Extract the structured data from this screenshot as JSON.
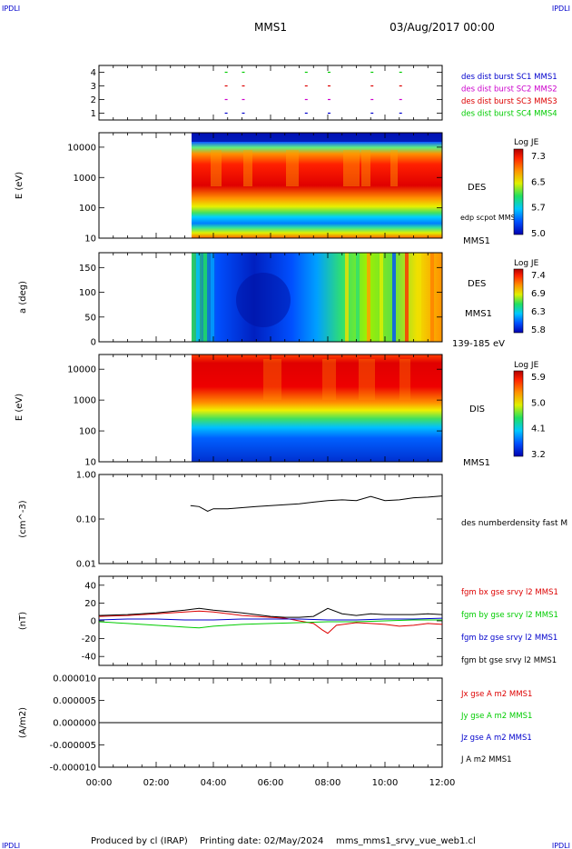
{
  "header": {
    "corner_left": "IPDLI",
    "corner_right": "IPDLI",
    "mission": "MMS1",
    "date": "03/Aug/2017 00:00"
  },
  "footer": {
    "produced_by": "Produced by  cl (IRAP)",
    "printing": "Printing date: 02/May/2024",
    "script": "mms_mms1_srvy_vue_web1.cl",
    "corner_left": "IPDLI",
    "corner_right": "IPDLI"
  },
  "colors": {
    "blue": "#0000cc",
    "magenta": "#cc00cc",
    "red": "#dd0000",
    "green": "#00cc00",
    "black": "#000000"
  },
  "chart_data": [
    {
      "type": "scatter",
      "panel": "burst",
      "y_ticks": [
        "4",
        "3",
        "2",
        "1"
      ],
      "ylim": [
        0.5,
        4.5
      ],
      "xlim": [
        0,
        12
      ],
      "legend": [
        {
          "label": "des dist burst SC1 MMS1",
          "color": "#0000cc"
        },
        {
          "label": "des dist burst SC2 MMS2",
          "color": "#cc00cc"
        },
        {
          "label": "des dist burst SC3 MMS3",
          "color": "#dd0000"
        },
        {
          "label": "des dist burst SC4 MMS4",
          "color": "#00cc00"
        }
      ],
      "burst_times": [
        4.4,
        5.0,
        7.2,
        8.0,
        9.5,
        10.5
      ]
    },
    {
      "type": "heatmap",
      "panel": "des_energy",
      "ylabel": "E (eV)",
      "y_scale": "log",
      "y_ticks": [
        "10000",
        "1000",
        "100",
        "10"
      ],
      "ylim": [
        10,
        30000
      ],
      "xlim": [
        0,
        12
      ],
      "data_start": 3.2,
      "instrument": "DES",
      "annotation": "edp scpot MMS1",
      "spacecraft": "MMS1",
      "colorbar": {
        "title": "Log JE",
        "ticks": [
          "7.3",
          "6.5",
          "5.7",
          "5.0"
        ]
      }
    },
    {
      "type": "heatmap",
      "panel": "des_pitch",
      "ylabel": "a (deg)",
      "y_ticks": [
        "150",
        "100",
        "50",
        "0"
      ],
      "ylim": [
        0,
        180
      ],
      "xlim": [
        0,
        12
      ],
      "data_start": 3.2,
      "instrument": "DES",
      "spacecraft": "MMS1",
      "energy_range": "139-185 eV",
      "colorbar": {
        "title": "Log JE",
        "ticks": [
          "7.4",
          "6.9",
          "6.3",
          "5.8"
        ]
      }
    },
    {
      "type": "heatmap",
      "panel": "dis_energy",
      "ylabel": "E (eV)",
      "y_scale": "log",
      "y_ticks": [
        "10000",
        "1000",
        "100",
        "10"
      ],
      "ylim": [
        10,
        30000
      ],
      "xlim": [
        0,
        12
      ],
      "data_start": 3.2,
      "instrument": "DIS",
      "spacecraft": "MMS1",
      "colorbar": {
        "title": "Log JE",
        "ticks": [
          "5.9",
          "5.0",
          "4.1",
          "3.2"
        ]
      }
    },
    {
      "type": "line",
      "panel": "density",
      "ylabel": "(cm^-3)",
      "y_scale": "log",
      "y_ticks": [
        "1.00",
        "0.10",
        "0.01"
      ],
      "ylim": [
        0.01,
        1.0
      ],
      "xlim": [
        0,
        12
      ],
      "legend": [
        {
          "label": "des numberdensity fast M",
          "color": "#000000"
        }
      ],
      "series": [
        {
          "x": [
            3.2,
            3.5,
            3.8,
            4.0,
            4.5,
            5.0,
            5.5,
            6.0,
            6.5,
            7.0,
            7.5,
            8.0,
            8.5,
            9.0,
            9.5,
            10.0,
            10.5,
            11.0,
            11.5,
            12.0
          ],
          "y": [
            0.2,
            0.19,
            0.15,
            0.17,
            0.17,
            0.18,
            0.19,
            0.2,
            0.21,
            0.22,
            0.24,
            0.26,
            0.27,
            0.26,
            0.32,
            0.26,
            0.27,
            0.3,
            0.31,
            0.33
          ]
        }
      ]
    },
    {
      "type": "line",
      "panel": "magnetic_field",
      "ylabel": "(nT)",
      "y_ticks": [
        "40",
        "20",
        "0",
        "-20",
        "-40"
      ],
      "ylim": [
        -50,
        50
      ],
      "xlim": [
        0,
        12
      ],
      "series": [
        {
          "name": "fgm bx gse srvy l2 MMS1",
          "color": "#dd0000",
          "x": [
            0,
            1,
            2,
            3,
            3.5,
            4,
            5,
            6,
            6.5,
            7,
            7.5,
            7.8,
            8.0,
            8.3,
            9,
            9.5,
            10,
            10.5,
            11,
            11.5,
            12
          ],
          "y": [
            5,
            6,
            8,
            10,
            11,
            10,
            6,
            4,
            3,
            0,
            -3,
            -10,
            -14,
            -5,
            -2,
            -3,
            -4,
            -6,
            -5,
            -3,
            -4
          ]
        },
        {
          "name": "fgm by gse srvy l2 MMS1",
          "color": "#00cc00",
          "x": [
            0,
            1,
            2,
            3,
            3.5,
            4,
            5,
            6,
            7,
            8,
            9,
            10,
            11,
            12
          ],
          "y": [
            -1,
            -3,
            -5,
            -7,
            -8,
            -6,
            -4,
            -3,
            -2,
            -1,
            -1,
            0,
            1,
            1
          ]
        },
        {
          "name": "fgm bz gse srvy l2 MMS1",
          "color": "#0000cc",
          "x": [
            0,
            1,
            2,
            3,
            4,
            5,
            6,
            7,
            8,
            9,
            10,
            11,
            12
          ],
          "y": [
            1,
            2,
            2,
            1,
            1,
            2,
            2,
            2,
            1,
            1,
            2,
            2,
            3
          ]
        },
        {
          "name": "fgm bt gse srvy l2 MMS1",
          "color": "#000000",
          "x": [
            0,
            1,
            2,
            3,
            3.5,
            4,
            5,
            6,
            6.5,
            7,
            7.5,
            8.0,
            8.5,
            9,
            9.5,
            10,
            10.5,
            11,
            11.5,
            12
          ],
          "y": [
            6,
            7,
            9,
            12,
            14,
            12,
            9,
            5,
            4,
            4,
            5,
            14,
            8,
            6,
            8,
            7,
            7,
            7,
            8,
            7
          ]
        }
      ]
    },
    {
      "type": "line",
      "panel": "current",
      "ylabel": "(A/m2)",
      "y_ticks": [
        "0.000010",
        "0.000005",
        "0.000000",
        "-0.000005",
        "-0.000010"
      ],
      "ylim": [
        -1e-05,
        1e-05
      ],
      "xlim": [
        0,
        12
      ],
      "series": [
        {
          "name": "Jx gse A m2 MMS1",
          "color": "#dd0000",
          "x": [
            0,
            12
          ],
          "y": [
            0,
            0
          ]
        },
        {
          "name": "Jy gse A m2 MMS1",
          "color": "#00cc00",
          "x": [
            0,
            12
          ],
          "y": [
            0,
            0
          ]
        },
        {
          "name": "Jz gse A m2 MMS1",
          "color": "#0000cc",
          "x": [
            0,
            12
          ],
          "y": [
            0,
            0
          ]
        },
        {
          "name": "J A m2 MMS1",
          "color": "#000000",
          "x": [
            0,
            12
          ],
          "y": [
            0,
            0
          ]
        }
      ]
    }
  ],
  "x_axis": {
    "ticks": [
      "00:00",
      "02:00",
      "04:00",
      "06:00",
      "08:00",
      "10:00",
      "12:00"
    ],
    "tick_hours": [
      0,
      2,
      4,
      6,
      8,
      10,
      12
    ]
  }
}
